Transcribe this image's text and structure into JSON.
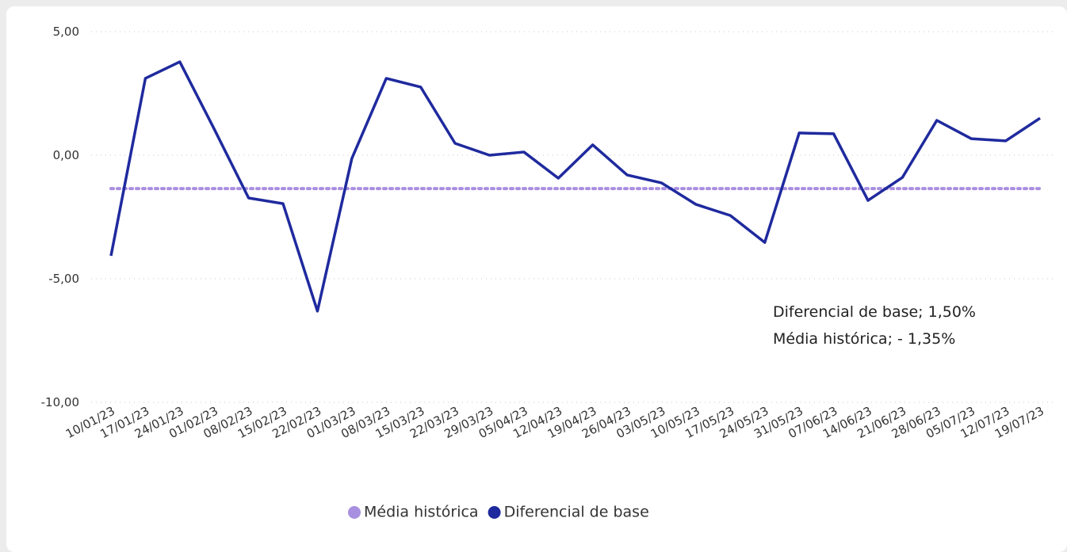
{
  "chart_data": {
    "type": "line",
    "categories": [
      "10/01/23",
      "17/01/23",
      "24/01/23",
      "01/02/23",
      "08/02/23",
      "15/02/23",
      "22/02/23",
      "01/03/23",
      "08/03/23",
      "15/03/23",
      "22/03/23",
      "29/03/23",
      "05/04/23",
      "12/04/23",
      "19/04/23",
      "26/04/23",
      "03/05/23",
      "10/05/23",
      "17/05/23",
      "24/05/23",
      "31/05/23",
      "07/06/23",
      "14/06/23",
      "21/06/23",
      "28/06/23",
      "05/07/23",
      "12/07/23",
      "19/07/23"
    ],
    "series": [
      {
        "name": "Média histórica",
        "color": "#a98fe0",
        "dashed": true,
        "values": [
          -1.35,
          -1.35,
          -1.35,
          -1.35,
          -1.35,
          -1.35,
          -1.35,
          -1.35,
          -1.35,
          -1.35,
          -1.35,
          -1.35,
          -1.35,
          -1.35,
          -1.35,
          -1.35,
          -1.35,
          -1.35,
          -1.35,
          -1.35,
          -1.35,
          -1.35,
          -1.35,
          -1.35,
          -1.35,
          -1.35,
          -1.35,
          -1.35
        ]
      },
      {
        "name": "Diferencial de base",
        "color": "#1f2a9e",
        "dashed": false,
        "values": [
          -4.07,
          3.11,
          3.78,
          1.06,
          -1.73,
          -1.96,
          -6.31,
          -0.13,
          3.11,
          2.76,
          0.48,
          0.0,
          0.13,
          -0.93,
          0.42,
          -0.8,
          -1.12,
          -1.99,
          -2.44,
          -3.53,
          0.9,
          0.87,
          -1.83,
          -0.9,
          1.41,
          0.67,
          0.58,
          1.5
        ]
      }
    ],
    "ylim": [
      -10,
      5
    ],
    "yticks": [
      {
        "value": -10,
        "label": "-10,00"
      },
      {
        "value": -5,
        "label": "-5,00"
      },
      {
        "value": 0,
        "label": "0,00"
      },
      {
        "value": 5,
        "label": "5,00"
      }
    ],
    "grid": true,
    "legend": "bottom",
    "annotations": [
      "Diferencial de base; 1,50%",
      "Média histórica; - 1,35%"
    ]
  }
}
